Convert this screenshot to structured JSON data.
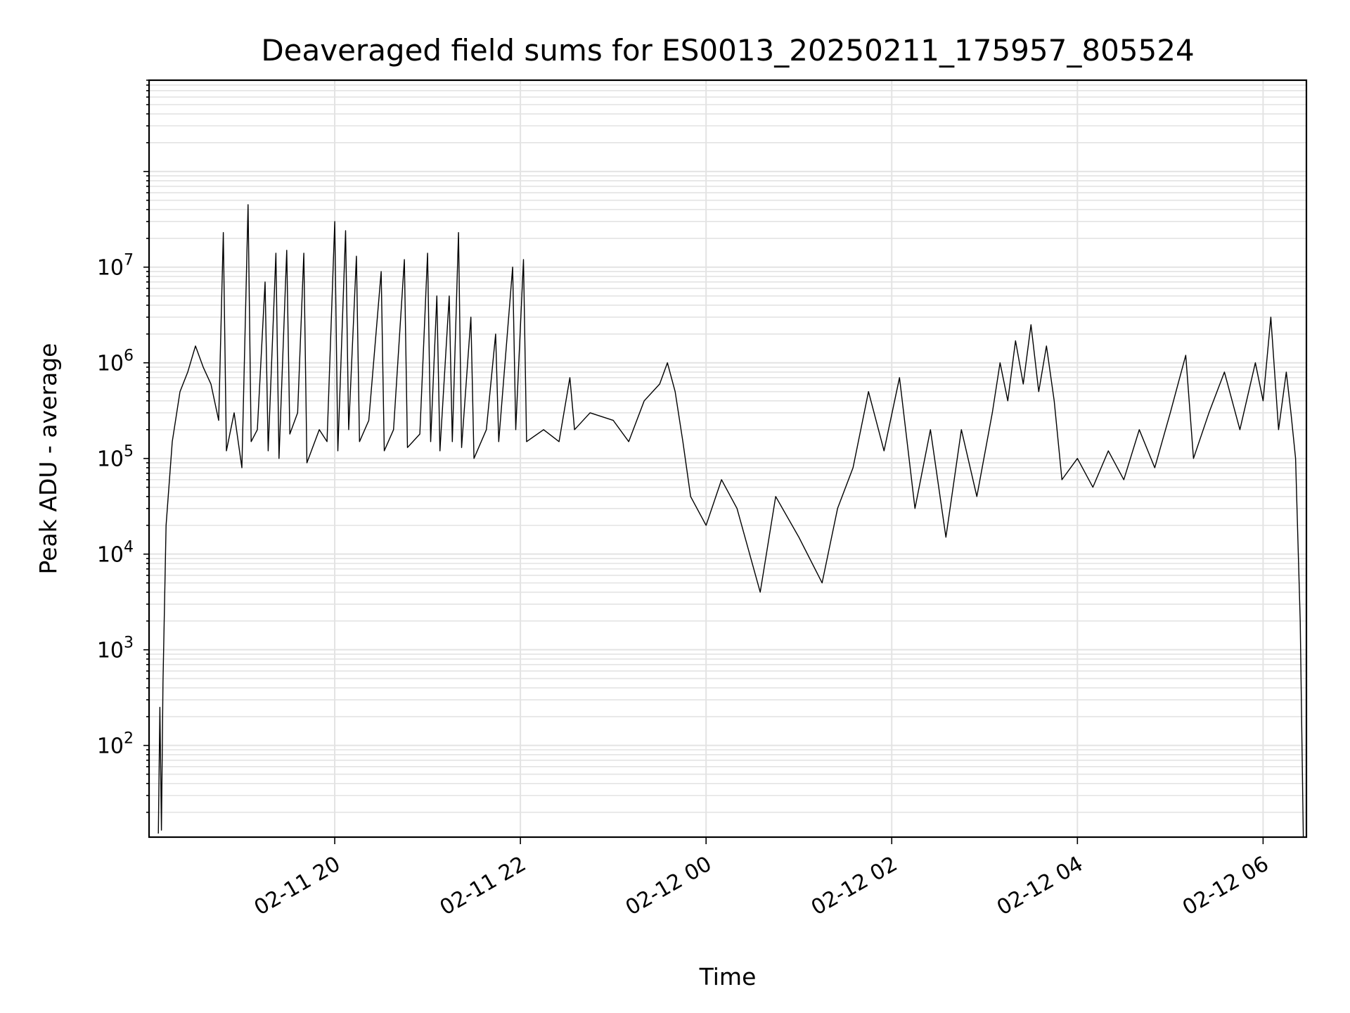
{
  "chart_data": {
    "type": "line",
    "title": "Deaveraged field sums for ES0013_20250211_175957_805524",
    "xlabel": "Time",
    "ylabel": "Peak ADU - average",
    "yscale": "log",
    "ylim": [
      11,
      900000000
    ],
    "xlim": [
      "2025-02-11 18:00",
      "2025-02-12 06:28"
    ],
    "grid": true,
    "line_color": "#000000",
    "x_ticks": [
      {
        "label": "02-11 20",
        "value": "2025-02-11 20:00"
      },
      {
        "label": "02-11 22",
        "value": "2025-02-11 22:00"
      },
      {
        "label": "02-12 00",
        "value": "2025-02-12 00:00"
      },
      {
        "label": "02-12 02",
        "value": "2025-02-12 02:00"
      },
      {
        "label": "02-12 04",
        "value": "2025-02-12 04:00"
      },
      {
        "label": "02-12 06",
        "value": "2025-02-12 06:00"
      }
    ],
    "y_ticks": [
      {
        "base": "10",
        "exp": "2",
        "value": 100
      },
      {
        "base": "10",
        "exp": "3",
        "value": 1000
      },
      {
        "base": "10",
        "exp": "4",
        "value": 10000
      },
      {
        "base": "10",
        "exp": "5",
        "value": 100000
      },
      {
        "base": "10",
        "exp": "6",
        "value": 1000000
      },
      {
        "base": "10",
        "exp": "7",
        "value": 10000000
      }
    ],
    "series": [
      {
        "points": [
          [
            "2025-02-11 18:06",
            12
          ],
          [
            "2025-02-11 18:07",
            250
          ],
          [
            "2025-02-11 18:08",
            13
          ],
          [
            "2025-02-11 18:09",
            450
          ],
          [
            "2025-02-11 18:11",
            20000
          ],
          [
            "2025-02-11 18:15",
            150000
          ],
          [
            "2025-02-11 18:20",
            500000
          ],
          [
            "2025-02-11 18:25",
            800000
          ],
          [
            "2025-02-11 18:30",
            1500000
          ],
          [
            "2025-02-11 18:35",
            900000
          ],
          [
            "2025-02-11 18:40",
            600000
          ],
          [
            "2025-02-11 18:45",
            250000
          ],
          [
            "2025-02-11 18:48",
            23000000
          ],
          [
            "2025-02-11 18:50",
            120000
          ],
          [
            "2025-02-11 18:55",
            300000
          ],
          [
            "2025-02-11 19:00",
            80000
          ],
          [
            "2025-02-11 19:04",
            45000000
          ],
          [
            "2025-02-11 19:06",
            150000
          ],
          [
            "2025-02-11 19:10",
            200000
          ],
          [
            "2025-02-11 19:15",
            7000000
          ],
          [
            "2025-02-11 19:17",
            120000
          ],
          [
            "2025-02-11 19:22",
            14000000
          ],
          [
            "2025-02-11 19:24",
            100000
          ],
          [
            "2025-02-11 19:29",
            15000000
          ],
          [
            "2025-02-11 19:31",
            180000
          ],
          [
            "2025-02-11 19:36",
            300000
          ],
          [
            "2025-02-11 19:40",
            14000000
          ],
          [
            "2025-02-11 19:42",
            90000
          ],
          [
            "2025-02-11 19:50",
            200000
          ],
          [
            "2025-02-11 19:55",
            150000
          ],
          [
            "2025-02-11 20:00",
            30000000
          ],
          [
            "2025-02-11 20:02",
            120000
          ],
          [
            "2025-02-11 20:07",
            24000000
          ],
          [
            "2025-02-11 20:09",
            200000
          ],
          [
            "2025-02-11 20:14",
            13000000
          ],
          [
            "2025-02-11 20:16",
            150000
          ],
          [
            "2025-02-11 20:22",
            250000
          ],
          [
            "2025-02-11 20:30",
            9000000
          ],
          [
            "2025-02-11 20:32",
            120000
          ],
          [
            "2025-02-11 20:38",
            200000
          ],
          [
            "2025-02-11 20:45",
            12000000
          ],
          [
            "2025-02-11 20:47",
            130000
          ],
          [
            "2025-02-11 20:55",
            180000
          ],
          [
            "2025-02-11 21:00",
            14000000
          ],
          [
            "2025-02-11 21:02",
            150000
          ],
          [
            "2025-02-11 21:06",
            5000000
          ],
          [
            "2025-02-11 21:08",
            120000
          ],
          [
            "2025-02-11 21:14",
            5000000
          ],
          [
            "2025-02-11 21:16",
            150000
          ],
          [
            "2025-02-11 21:20",
            23000000
          ],
          [
            "2025-02-11 21:22",
            130000
          ],
          [
            "2025-02-11 21:28",
            3000000
          ],
          [
            "2025-02-11 21:30",
            100000
          ],
          [
            "2025-02-11 21:38",
            200000
          ],
          [
            "2025-02-11 21:44",
            2000000
          ],
          [
            "2025-02-11 21:46",
            150000
          ],
          [
            "2025-02-11 21:55",
            10000000
          ],
          [
            "2025-02-11 21:57",
            200000
          ],
          [
            "2025-02-11 22:02",
            12000000
          ],
          [
            "2025-02-11 22:04",
            150000
          ],
          [
            "2025-02-11 22:15",
            200000
          ],
          [
            "2025-02-11 22:25",
            150000
          ],
          [
            "2025-02-11 22:32",
            700000
          ],
          [
            "2025-02-11 22:35",
            200000
          ],
          [
            "2025-02-11 22:45",
            300000
          ],
          [
            "2025-02-11 23:00",
            250000
          ],
          [
            "2025-02-11 23:10",
            150000
          ],
          [
            "2025-02-11 23:20",
            400000
          ],
          [
            "2025-02-11 23:30",
            600000
          ],
          [
            "2025-02-11 23:35",
            1000000
          ],
          [
            "2025-02-11 23:40",
            500000
          ],
          [
            "2025-02-11 23:45",
            150000
          ],
          [
            "2025-02-11 23:50",
            40000
          ],
          [
            "2025-02-12 00:00",
            20000
          ],
          [
            "2025-02-12 00:10",
            60000
          ],
          [
            "2025-02-12 00:20",
            30000
          ],
          [
            "2025-02-12 00:35",
            4000
          ],
          [
            "2025-02-12 00:45",
            40000
          ],
          [
            "2025-02-12 01:00",
            15000
          ],
          [
            "2025-02-12 01:15",
            5000
          ],
          [
            "2025-02-12 01:25",
            30000
          ],
          [
            "2025-02-12 01:35",
            80000
          ],
          [
            "2025-02-12 01:45",
            500000
          ],
          [
            "2025-02-12 01:55",
            120000
          ],
          [
            "2025-02-12 02:05",
            700000
          ],
          [
            "2025-02-12 02:15",
            30000
          ],
          [
            "2025-02-12 02:25",
            200000
          ],
          [
            "2025-02-12 02:35",
            15000
          ],
          [
            "2025-02-12 02:45",
            200000
          ],
          [
            "2025-02-12 02:55",
            40000
          ],
          [
            "2025-02-12 03:05",
            300000
          ],
          [
            "2025-02-12 03:10",
            1000000
          ],
          [
            "2025-02-12 03:15",
            400000
          ],
          [
            "2025-02-12 03:20",
            1700000
          ],
          [
            "2025-02-12 03:25",
            600000
          ],
          [
            "2025-02-12 03:30",
            2500000
          ],
          [
            "2025-02-12 03:35",
            500000
          ],
          [
            "2025-02-12 03:40",
            1500000
          ],
          [
            "2025-02-12 03:45",
            400000
          ],
          [
            "2025-02-12 03:50",
            60000
          ],
          [
            "2025-02-12 04:00",
            100000
          ],
          [
            "2025-02-12 04:10",
            50000
          ],
          [
            "2025-02-12 04:20",
            120000
          ],
          [
            "2025-02-12 04:30",
            60000
          ],
          [
            "2025-02-12 04:40",
            200000
          ],
          [
            "2025-02-12 04:50",
            80000
          ],
          [
            "2025-02-12 05:00",
            300000
          ],
          [
            "2025-02-12 05:10",
            1200000
          ],
          [
            "2025-02-12 05:15",
            100000
          ],
          [
            "2025-02-12 05:25",
            300000
          ],
          [
            "2025-02-12 05:35",
            800000
          ],
          [
            "2025-02-12 05:45",
            200000
          ],
          [
            "2025-02-12 05:55",
            1000000
          ],
          [
            "2025-02-12 06:00",
            400000
          ],
          [
            "2025-02-12 06:05",
            3000000
          ],
          [
            "2025-02-12 06:10",
            200000
          ],
          [
            "2025-02-12 06:15",
            800000
          ],
          [
            "2025-02-12 06:18",
            300000
          ],
          [
            "2025-02-12 06:21",
            100000
          ],
          [
            "2025-02-12 06:24",
            2000
          ],
          [
            "2025-02-12 06:26",
            11
          ]
        ]
      }
    ]
  }
}
